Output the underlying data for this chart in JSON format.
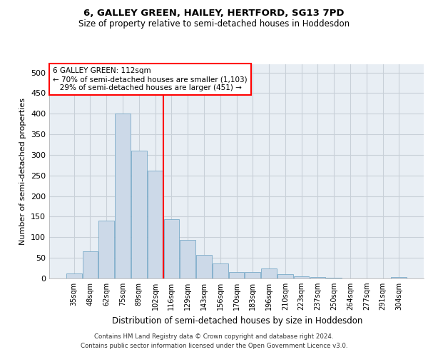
{
  "title1": "6, GALLEY GREEN, HAILEY, HERTFORD, SG13 7PD",
  "title2": "Size of property relative to semi-detached houses in Hoddesdon",
  "xlabel": "Distribution of semi-detached houses by size in Hoddesdon",
  "ylabel": "Number of semi-detached properties",
  "footnote1": "Contains HM Land Registry data © Crown copyright and database right 2024.",
  "footnote2": "Contains public sector information licensed under the Open Government Licence v3.0.",
  "bar_color": "#ccd9e8",
  "bar_edge_color": "#7aaac8",
  "categories": [
    "35sqm",
    "48sqm",
    "62sqm",
    "75sqm",
    "89sqm",
    "102sqm",
    "116sqm",
    "129sqm",
    "143sqm",
    "156sqm",
    "170sqm",
    "183sqm",
    "196sqm",
    "210sqm",
    "223sqm",
    "237sqm",
    "250sqm",
    "264sqm",
    "277sqm",
    "291sqm",
    "304sqm"
  ],
  "values": [
    12,
    66,
    140,
    401,
    311,
    261,
    144,
    93,
    58,
    37,
    15,
    16,
    24,
    10,
    5,
    3,
    2,
    0,
    0,
    0,
    3
  ],
  "property_label": "6 GALLEY GREEN: 112sqm",
  "pct_smaller": 70,
  "n_smaller": 1103,
  "pct_larger": 29,
  "n_larger": 451,
  "vline_x_index": 5.5,
  "ylim": [
    0,
    520
  ],
  "yticks": [
    0,
    50,
    100,
    150,
    200,
    250,
    300,
    350,
    400,
    450,
    500
  ],
  "grid_color": "#c8d0d8",
  "bg_color": "#e8eef4"
}
